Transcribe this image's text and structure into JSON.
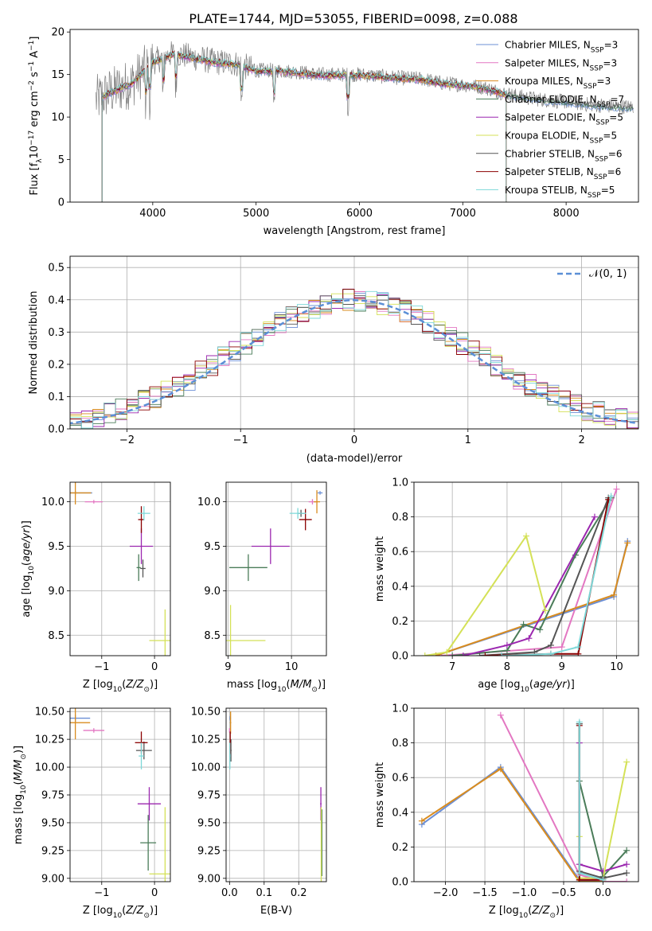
{
  "figure": {
    "title": "PLATE=1744, MJD=53055, FIBERID=0098, z=0.088",
    "series": [
      {
        "name": "Chabrier MILES",
        "nssp": "3",
        "color": "#6b8fd6"
      },
      {
        "name": "Salpeter MILES",
        "nssp": "3",
        "color": "#e377c2"
      },
      {
        "name": "Kroupa MILES",
        "nssp": "3",
        "color": "#d98c1f"
      },
      {
        "name": "Chabrier ELODIE",
        "nssp": "7",
        "color": "#4a7c59"
      },
      {
        "name": "Salpeter ELODIE",
        "nssp": "5",
        "color": "#9b27af"
      },
      {
        "name": "Kroupa ELODIE",
        "nssp": "5",
        "color": "#d4e157"
      },
      {
        "name": "Chabrier STELIB",
        "nssp": "6",
        "color": "#555555"
      },
      {
        "name": "Salpeter STELIB",
        "nssp": "6",
        "color": "#8b0000"
      },
      {
        "name": "Kroupa STELIB",
        "nssp": "5",
        "color": "#7dd8d8"
      }
    ]
  },
  "chart_data": [
    {
      "id": "spectrum",
      "type": "line",
      "xlabel": "wavelength [Angstrom, rest frame]",
      "ylabel_parts": [
        "Flux [f",
        "λ",
        "10",
        "−17",
        " erg cm",
        "−2",
        " s",
        "−1",
        " A",
        "−1",
        "]"
      ],
      "xlim": [
        3200,
        8700
      ],
      "ylim": [
        0,
        20.3
      ],
      "xticks": [
        4000,
        5000,
        6000,
        7000,
        8000
      ],
      "yticks": [
        0,
        5,
        10,
        15,
        20
      ],
      "data_envelope": {
        "x": [
          3450,
          3600,
          3800,
          4000,
          4200,
          4400,
          4600,
          4800,
          5000,
          5200,
          5400,
          5600,
          5800,
          6000,
          6200,
          6400,
          6600,
          6800,
          7000,
          7200,
          7400,
          7600,
          7800,
          8000,
          8200,
          8400,
          8600
        ],
        "y": [
          12.0,
          13.0,
          14.0,
          16.5,
          17.5,
          17.0,
          16.5,
          16.3,
          15.5,
          15.5,
          15.3,
          15.0,
          15.0,
          15.0,
          14.8,
          14.6,
          14.5,
          14.0,
          13.8,
          13.5,
          12.8,
          12.3,
          12.0,
          11.8,
          11.5,
          11.3,
          11.2
        ]
      },
      "model_end": 7420,
      "model_start": 3510,
      "absorption_lines": [
        3934,
        3969,
        4102,
        4226,
        4861,
        5175,
        5890
      ]
    },
    {
      "id": "residuals",
      "type": "histogram",
      "xlabel": "(data-model)/error",
      "ylabel": "Normed distribution",
      "xlim": [
        -2.5,
        2.5
      ],
      "ylim": [
        0,
        0.535
      ],
      "xticks": [
        -2,
        -1,
        0,
        1,
        2
      ],
      "xtick_labels": [
        "−2",
        "−1",
        "0",
        "1",
        "2"
      ],
      "yticks": [
        0.0,
        0.1,
        0.2,
        0.3,
        0.4,
        0.5
      ],
      "ytick_labels": [
        "0.0",
        "0.1",
        "0.2",
        "0.3",
        "0.4",
        "0.5"
      ],
      "bin_width": 0.1,
      "legend": "N(0,1)"
    },
    {
      "id": "age-vs-Z",
      "type": "errorbar",
      "xlabel_parts": [
        "Z [log",
        "10",
        "(",
        "Z/Z",
        "⊙",
        ")]"
      ],
      "ylabel_parts": [
        "age  [log",
        "10",
        "(",
        "age/yr",
        ")]"
      ],
      "xlim": [
        -1.6,
        0.3
      ],
      "ylim": [
        8.27,
        10.22
      ],
      "xticks": [
        -1,
        0
      ],
      "xtick_labels": [
        "−1",
        "0"
      ],
      "yticks": [
        8.5,
        9.0,
        9.5,
        10.0
      ],
      "ytick_labels": [
        "8.5",
        "9.0",
        "9.5",
        "10.0"
      ]
    },
    {
      "id": "age-vs-mass",
      "type": "errorbar",
      "xlabel_parts": [
        "mass [log",
        "10",
        "(",
        "M/M",
        "⊙",
        ")]"
      ],
      "xlim": [
        8.97,
        10.55
      ],
      "ylim": [
        8.27,
        10.22
      ],
      "xticks": [
        9,
        10
      ],
      "yticks": [
        8.5,
        9.0,
        9.5,
        10.0
      ],
      "ytick_labels": [
        "8.5",
        "9.0",
        "9.5",
        "10.0"
      ]
    },
    {
      "id": "massweight-vs-age",
      "type": "line",
      "xlabel_parts": [
        "age  [log",
        "10",
        "(",
        "age/yr",
        ")]"
      ],
      "ylabel": "mass weight",
      "xlim": [
        6.3,
        10.4
      ],
      "ylim": [
        0,
        1
      ],
      "xticks": [
        7,
        8,
        9,
        10
      ],
      "yticks": [
        0.0,
        0.2,
        0.4,
        0.6,
        0.8,
        1.0
      ],
      "ytick_labels": [
        "0.0",
        "0.2",
        "0.4",
        "0.6",
        "0.8",
        "1.0"
      ],
      "series": [
        {
          "x": [
            6.7,
            9.95,
            10.2
          ],
          "y": [
            0.0,
            0.34,
            0.66
          ]
        },
        {
          "x": [
            6.8,
            9.0,
            10.0
          ],
          "y": [
            0.0,
            0.05,
            0.96
          ]
        },
        {
          "x": [
            6.7,
            9.95,
            10.2
          ],
          "y": [
            0.0,
            0.35,
            0.65
          ]
        },
        {
          "x": [
            7.0,
            8.0,
            8.3,
            8.6,
            9.25,
            9.9
          ],
          "y": [
            0.0,
            0.03,
            0.18,
            0.15,
            0.58,
            0.91
          ]
        },
        {
          "x": [
            7.2,
            8.0,
            8.4,
            9.6
          ],
          "y": [
            0.0,
            0.06,
            0.1,
            0.8
          ]
        },
        {
          "x": [
            6.5,
            6.9,
            8.35,
            8.7
          ],
          "y": [
            0.0,
            0.02,
            0.69,
            0.26
          ]
        },
        {
          "x": [
            7.5,
            8.5,
            8.8,
            9.85
          ],
          "y": [
            0.0,
            0.02,
            0.06,
            0.91
          ]
        },
        {
          "x": [
            7.6,
            8.8,
            9.3,
            9.85
          ],
          "y": [
            0.0,
            0.01,
            0.01,
            0.9
          ]
        },
        {
          "x": [
            7.9,
            8.8,
            9.3,
            9.9
          ],
          "y": [
            0.0,
            0.01,
            0.05,
            0.92
          ]
        }
      ]
    },
    {
      "id": "mass-vs-Z",
      "type": "errorbar",
      "xlabel_parts": [
        "Z [log",
        "10",
        "(",
        "Z/Z",
        "⊙",
        ")]"
      ],
      "ylabel_parts": [
        "mass [log",
        "10",
        "(",
        "M/M",
        "⊙",
        ")]"
      ],
      "xlim": [
        -1.6,
        0.3
      ],
      "ylim": [
        8.97,
        10.53
      ],
      "xticks": [
        -1,
        0
      ],
      "xtick_labels": [
        "−1",
        "0"
      ],
      "yticks": [
        9.0,
        9.25,
        9.5,
        9.75,
        10.0,
        10.25,
        10.5
      ],
      "ytick_labels": [
        "9.00",
        "9.25",
        "9.50",
        "9.75",
        "10.00",
        "10.25",
        "10.50"
      ]
    },
    {
      "id": "mass-vs-ebv",
      "type": "errorbar",
      "xlabel": "E(B-V)",
      "xlim": [
        -0.01,
        0.28
      ],
      "ylim": [
        8.97,
        10.53
      ],
      "xticks": [
        0.0,
        0.1,
        0.2
      ],
      "xtick_labels": [
        "0.0",
        "0.1",
        "0.2"
      ],
      "yticks": [
        9.0,
        9.25,
        9.5,
        9.75,
        10.0,
        10.25,
        10.5
      ],
      "ytick_labels": [
        "9.00",
        "9.25",
        "9.50",
        "9.75",
        "10.00",
        "10.25",
        "10.50"
      ]
    },
    {
      "id": "massweight-vs-Z",
      "type": "line",
      "xlabel_parts": [
        "Z [log",
        "10",
        "(",
        "Z/Z",
        "⊙",
        ")]"
      ],
      "ylabel": "mass weight",
      "xlim": [
        -2.4,
        0.45
      ],
      "ylim": [
        0,
        1
      ],
      "xticks": [
        -2.0,
        -1.5,
        -1.0,
        -0.5,
        0.0
      ],
      "xtick_labels": [
        "−2.0",
        "−1.5",
        "−1.0",
        "−0.5",
        "0.0"
      ],
      "yticks": [
        0.0,
        0.2,
        0.4,
        0.6,
        0.8,
        1.0
      ],
      "ytick_labels": [
        "0.0",
        "0.2",
        "0.4",
        "0.6",
        "0.8",
        "1.0"
      ],
      "series": [
        {
          "x": [
            -2.3,
            -1.3,
            -0.3,
            0.0
          ],
          "y": [
            0.33,
            0.66,
            0.01,
            0.0
          ]
        },
        {
          "x": [
            -1.3,
            -0.3,
            0.0,
            0.3
          ],
          "y": [
            0.96,
            0.04,
            0.0,
            0.0
          ]
        },
        {
          "x": [
            -2.3,
            -1.3,
            -0.3,
            0.0
          ],
          "y": [
            0.35,
            0.65,
            0.0,
            0.0
          ]
        },
        {
          "x": [
            -0.3,
            -0.3,
            0.0,
            0.3
          ],
          "y": [
            0.91,
            0.58,
            0.03,
            0.18
          ]
        },
        {
          "x": [
            -0.3,
            -0.3,
            0.0,
            0.3
          ],
          "y": [
            0.8,
            0.1,
            0.06,
            0.1
          ]
        },
        {
          "x": [
            -0.3,
            -0.3,
            0.0,
            0.3
          ],
          "y": [
            0.26,
            0.02,
            0.02,
            0.69
          ]
        },
        {
          "x": [
            -0.3,
            -0.3,
            0.0,
            0.3
          ],
          "y": [
            0.91,
            0.06,
            0.02,
            0.05
          ]
        },
        {
          "x": [
            -0.3,
            -0.3,
            0.0
          ],
          "y": [
            0.9,
            0.01,
            0.01
          ]
        },
        {
          "x": [
            -0.3,
            -0.3,
            0.0
          ],
          "y": [
            0.92,
            0.05,
            0.01
          ]
        }
      ]
    }
  ],
  "errorbars": {
    "age_Z": [
      {
        "s": 0,
        "x": -1.5,
        "xe": 0.32,
        "y": 10.1,
        "ye": 0.02
      },
      {
        "s": 1,
        "x": -1.15,
        "xe": 0.17,
        "y": 10.0,
        "ye": 0.02
      },
      {
        "s": 2,
        "x": -1.5,
        "xe": 0.3,
        "y": 10.1,
        "ye": 0.13
      },
      {
        "s": 3,
        "x": -0.3,
        "xe": 0.04,
        "y": 9.26,
        "ye": 0.15
      },
      {
        "s": 4,
        "x": -0.25,
        "xe": 0.22,
        "y": 9.5,
        "ye": 0.2
      },
      {
        "s": 5,
        "x": 0.2,
        "xe": 0.3,
        "y": 8.44,
        "ye": 0.35
      },
      {
        "s": 6,
        "x": -0.22,
        "xe": 0.05,
        "y": 9.25,
        "ye": 0.1
      },
      {
        "s": 7,
        "x": -0.25,
        "xe": 0.06,
        "y": 9.8,
        "ye": 0.15
      },
      {
        "s": 8,
        "x": -0.2,
        "xe": 0.12,
        "y": 9.87,
        "ye": 0.08
      }
    ],
    "age_mass": [
      {
        "s": 0,
        "x": 10.45,
        "xe": 0.04,
        "y": 10.1,
        "ye": 0.02
      },
      {
        "s": 1,
        "x": 10.33,
        "xe": 0.06,
        "y": 10.0,
        "ye": 0.03
      },
      {
        "s": 2,
        "x": 10.4,
        "xe": 0.05,
        "y": 10.0,
        "ye": 0.13
      },
      {
        "s": 3,
        "x": 9.32,
        "xe": 0.3,
        "y": 9.26,
        "ye": 0.15
      },
      {
        "s": 4,
        "x": 9.67,
        "xe": 0.3,
        "y": 9.5,
        "ye": 0.2
      },
      {
        "s": 5,
        "x": 9.04,
        "xe": 0.55,
        "y": 8.44,
        "ye": 0.4
      },
      {
        "s": 6,
        "x": 10.15,
        "xe": 0.05,
        "y": 9.87,
        "ye": 0.04
      },
      {
        "s": 7,
        "x": 10.22,
        "xe": 0.1,
        "y": 9.8,
        "ye": 0.12
      },
      {
        "s": 8,
        "x": 10.1,
        "xe": 0.13,
        "y": 9.87,
        "ye": 0.06
      }
    ],
    "mass_Z": [
      {
        "s": 0,
        "x": -1.5,
        "xe": 0.28,
        "y": 10.44,
        "ye": 0.03
      },
      {
        "s": 1,
        "x": -1.15,
        "xe": 0.2,
        "y": 10.33,
        "ye": 0.02
      },
      {
        "s": 2,
        "x": -1.5,
        "xe": 0.28,
        "y": 10.4,
        "ye": 0.15
      },
      {
        "s": 3,
        "x": -0.12,
        "xe": 0.15,
        "y": 9.32,
        "ye": 0.25
      },
      {
        "s": 4,
        "x": -0.1,
        "xe": 0.22,
        "y": 9.67,
        "ye": 0.15
      },
      {
        "s": 5,
        "x": 0.2,
        "xe": 0.3,
        "y": 9.04,
        "ye": 0.6
      },
      {
        "s": 6,
        "x": -0.2,
        "xe": 0.15,
        "y": 10.15,
        "ye": 0.08
      },
      {
        "s": 7,
        "x": -0.25,
        "xe": 0.12,
        "y": 10.22,
        "ye": 0.1
      },
      {
        "s": 8,
        "x": -0.25,
        "xe": 0.05,
        "y": 10.1,
        "ye": 0.12
      }
    ],
    "mass_ebv": [
      {
        "s": 0,
        "x": 0.002,
        "xe": 0.002,
        "y": 10.44,
        "ye": 0.02
      },
      {
        "s": 1,
        "x": 0.0,
        "xe": 0.001,
        "y": 10.33,
        "ye": 0.02
      },
      {
        "s": 2,
        "x": 0.003,
        "xe": 0.002,
        "y": 10.4,
        "ye": 0.1
      },
      {
        "s": 3,
        "x": 0.267,
        "xe": 0.001,
        "y": 9.32,
        "ye": 0.3
      },
      {
        "s": 4,
        "x": 0.264,
        "xe": 0.002,
        "y": 9.67,
        "ye": 0.15
      },
      {
        "s": 5,
        "x": 0.265,
        "xe": 0.001,
        "y": 9.04,
        "ye": 0.6
      },
      {
        "s": 6,
        "x": 0.004,
        "xe": 0.002,
        "y": 10.15,
        "ye": 0.1
      },
      {
        "s": 7,
        "x": 0.002,
        "xe": 0.002,
        "y": 10.22,
        "ye": 0.1
      },
      {
        "s": 8,
        "x": 0.001,
        "xe": 0.002,
        "y": 10.1,
        "ye": 0.12
      }
    ]
  }
}
